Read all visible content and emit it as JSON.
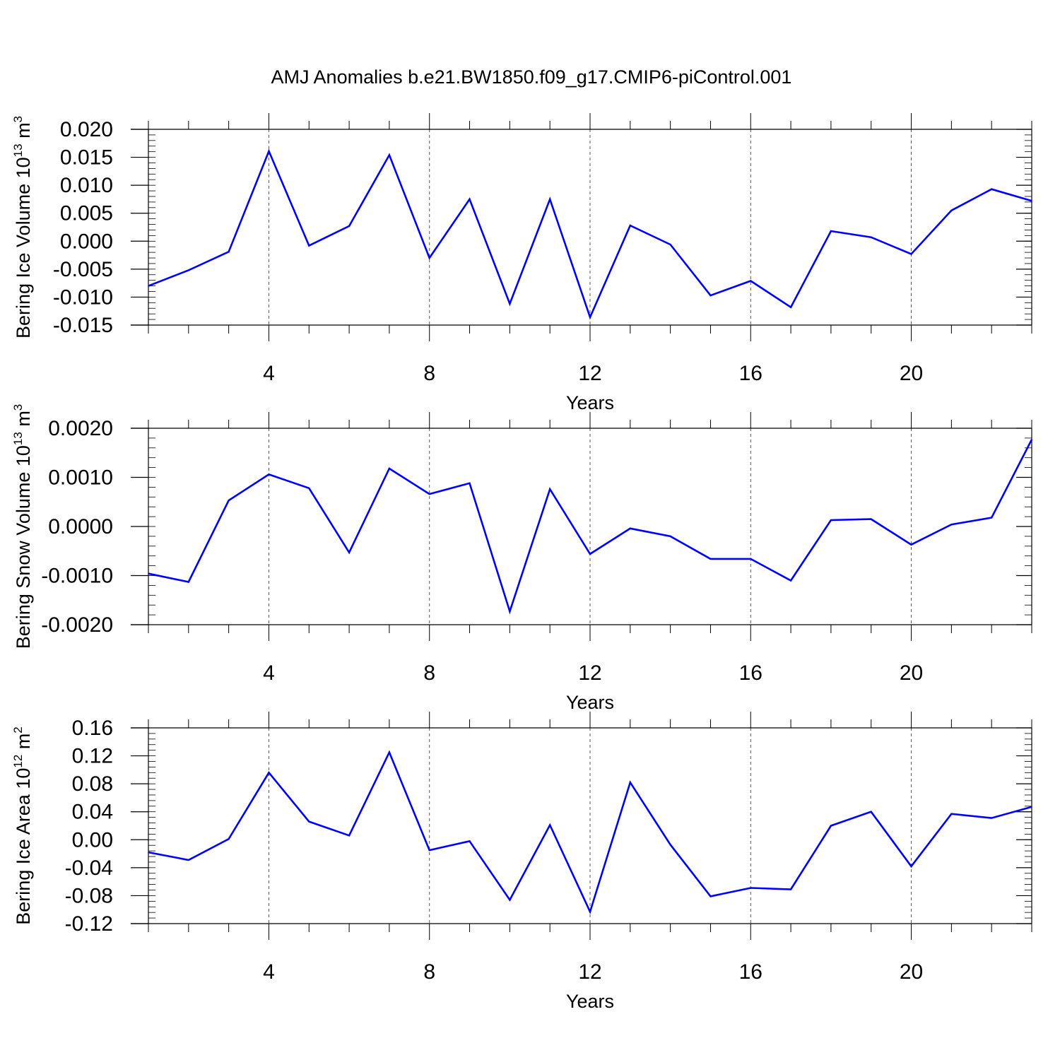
{
  "title": "AMJ Anomalies b.e21.BW1850.f09_g17.CMIP6-piControl.001",
  "line_color": "#0000ff",
  "chart_data": [
    {
      "type": "line",
      "title": "",
      "ylabel": "Bering Ice Volume 10",
      "ylabel_exp": "13",
      "ylabel_unit": " m",
      "ylabel_unit_exp": "3",
      "xlabel": "Years",
      "xlim": [
        1,
        23
      ],
      "ylim": [
        -0.015,
        0.02
      ],
      "yticks": [
        -0.015,
        -0.01,
        -0.005,
        0.0,
        0.005,
        0.01,
        0.015,
        0.02
      ],
      "ytick_labels": [
        "-0.015",
        "-0.010",
        "-0.005",
        "0.000",
        "0.005",
        "0.010",
        "0.015",
        "0.020"
      ],
      "yminor_step": 0.001,
      "xticks": [
        4,
        8,
        12,
        16,
        20
      ],
      "xtick_labels": [
        "4",
        "8",
        "12",
        "16",
        "20"
      ],
      "x": [
        1,
        2,
        3,
        4,
        5,
        6,
        7,
        8,
        9,
        10,
        11,
        12,
        13,
        14,
        15,
        16,
        17,
        18,
        19,
        20,
        21,
        22,
        23
      ],
      "series": [
        {
          "values": [
            -0.008,
            -0.0052,
            -0.0019,
            0.0161,
            -0.0008,
            0.0027,
            0.0154,
            -0.003,
            0.0075,
            -0.0112,
            0.0075,
            -0.0136,
            0.0028,
            -0.0006,
            -0.0097,
            -0.0071,
            -0.0118,
            0.0018,
            0.0007,
            -0.0023,
            0.0055,
            0.0093,
            0.0072
          ]
        }
      ]
    },
    {
      "type": "line",
      "title": "",
      "ylabel": "Bering Snow Volume 10",
      "ylabel_exp": "13",
      "ylabel_unit": " m",
      "ylabel_unit_exp": "3",
      "xlabel": "Years",
      "xlim": [
        1,
        23
      ],
      "ylim": [
        -0.002,
        0.002
      ],
      "yticks": [
        -0.002,
        -0.001,
        0.0,
        0.001,
        0.002
      ],
      "ytick_labels": [
        "-0.0020",
        "-0.0010",
        "0.0000",
        "0.0010",
        "0.0020"
      ],
      "yminor_step": 0.0002,
      "xticks": [
        4,
        8,
        12,
        16,
        20
      ],
      "xtick_labels": [
        "4",
        "8",
        "12",
        "16",
        "20"
      ],
      "x": [
        1,
        2,
        3,
        4,
        5,
        6,
        7,
        8,
        9,
        10,
        11,
        12,
        13,
        14,
        15,
        16,
        17,
        18,
        19,
        20,
        21,
        22,
        23
      ],
      "series": [
        {
          "values": [
            -0.00096,
            -0.00113,
            0.00053,
            0.00106,
            0.00078,
            -0.00053,
            0.00118,
            0.00066,
            0.00088,
            -0.00173,
            0.00076,
            -0.00056,
            -4e-05,
            -0.0002,
            -0.00066,
            -0.00066,
            -0.0011,
            0.00013,
            0.00015,
            -0.00037,
            4e-05,
            0.00018,
            0.00177
          ]
        }
      ]
    },
    {
      "type": "line",
      "title": "",
      "ylabel": "Bering Ice Area 10",
      "ylabel_exp": "12",
      "ylabel_unit": " m",
      "ylabel_unit_exp": "2",
      "xlabel": "Years",
      "xlim": [
        1,
        23
      ],
      "ylim": [
        -0.12,
        0.16
      ],
      "yticks": [
        -0.12,
        -0.08,
        -0.04,
        0.0,
        0.04,
        0.08,
        0.12,
        0.16
      ],
      "ytick_labels": [
        "-0.12",
        "-0.08",
        "-0.04",
        "0.00",
        "0.04",
        "0.08",
        "0.12",
        "0.16"
      ],
      "yminor_step": 0.008,
      "xticks": [
        4,
        8,
        12,
        16,
        20
      ],
      "xtick_labels": [
        "4",
        "8",
        "12",
        "16",
        "20"
      ],
      "x": [
        1,
        2,
        3,
        4,
        5,
        6,
        7,
        8,
        9,
        10,
        11,
        12,
        13,
        14,
        15,
        16,
        17,
        18,
        19,
        20,
        21,
        22,
        23
      ],
      "series": [
        {
          "values": [
            -0.018,
            -0.029,
            0.001,
            0.096,
            0.026,
            0.006,
            0.125,
            -0.015,
            -0.002,
            -0.086,
            0.021,
            -0.103,
            0.082,
            -0.007,
            -0.081,
            -0.069,
            -0.071,
            0.02,
            0.04,
            -0.038,
            0.037,
            0.031,
            0.047
          ]
        }
      ]
    }
  ]
}
